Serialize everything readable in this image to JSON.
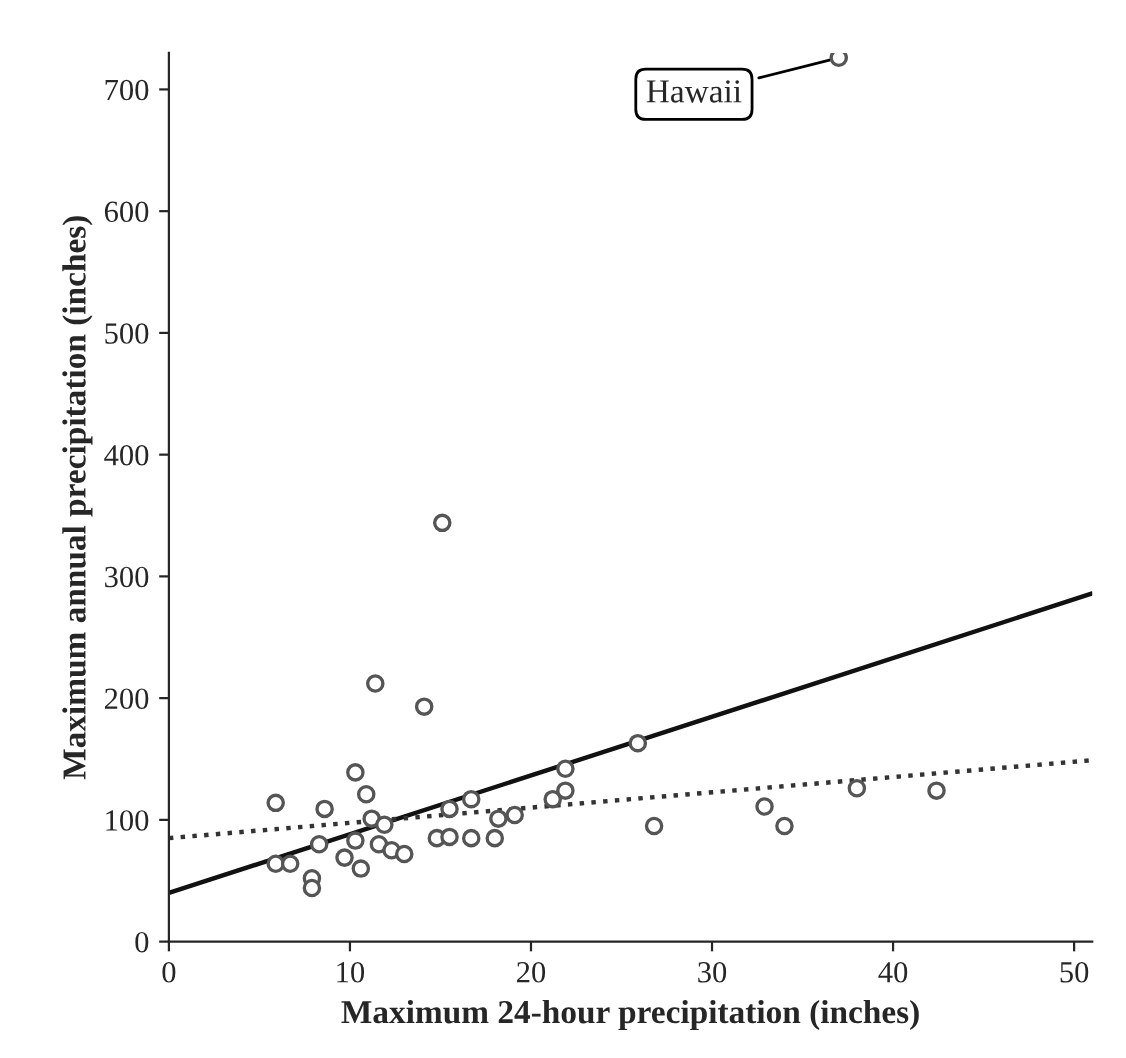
{
  "chart_data": {
    "type": "scatter",
    "xlabel": "Maximum 24-hour precipitation (inches)",
    "ylabel": "Maximum annual precipitation (inches)",
    "xlim": [
      0,
      51
    ],
    "ylim": [
      0,
      730
    ],
    "xticks": [
      0,
      10,
      20,
      30,
      40,
      50
    ],
    "yticks": [
      0,
      100,
      200,
      300,
      400,
      500,
      600,
      700
    ],
    "grid": false,
    "legend": false,
    "series": [
      {
        "marker": "circle",
        "color": "#555555",
        "x": [
          5.9,
          11.4,
          14.1,
          10.3,
          8.6,
          10.9,
          7.9,
          7.9,
          9.7,
          10.6,
          5.9,
          6.7,
          8.3,
          10.3,
          11.6,
          12.3,
          13.0,
          14.8,
          15.5,
          16.7,
          18.0,
          18.2,
          19.1,
          21.2,
          21.9,
          11.2,
          11.9,
          15.5,
          16.7,
          15.1,
          21.9,
          25.9,
          26.8,
          32.9,
          34.0,
          38.0,
          42.4,
          37.0
        ],
        "values": [
          114,
          212,
          193,
          139,
          109,
          121,
          52,
          44,
          69,
          60,
          64,
          64,
          80,
          83,
          80,
          75,
          72,
          85,
          86,
          85,
          85,
          101,
          104,
          117,
          124,
          101,
          96,
          109,
          117,
          344,
          142,
          163,
          95,
          111,
          95,
          126,
          124,
          726
        ]
      },
      {
        "type": "line",
        "color": "#111111",
        "line_style": "solid",
        "marker": "none",
        "x": [
          0,
          51
        ],
        "values": [
          40,
          286
        ]
      },
      {
        "type": "line",
        "color": "#333333",
        "line_style": "dotted",
        "marker": "none",
        "x": [
          0,
          51
        ],
        "values": [
          85,
          149
        ]
      }
    ],
    "annotations": [
      {
        "text": "Hawaii",
        "x": 37.0,
        "y": 726
      }
    ]
  }
}
